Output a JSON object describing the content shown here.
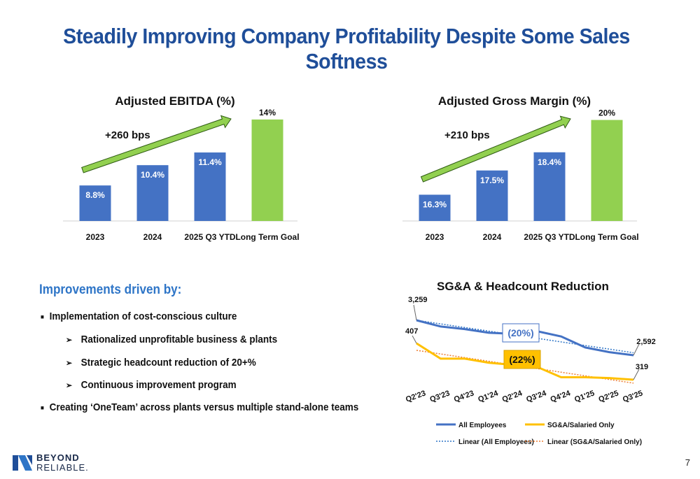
{
  "title": "Steadily Improving Company Profitability Despite Some Sales Softness",
  "colors": {
    "bar_blue": "#4472c4",
    "goal_green": "#92d050",
    "title_blue": "#1f4e99",
    "line_orange": "#ffc000",
    "headline_blue": "#2e75c7"
  },
  "chart_data": [
    {
      "type": "bar",
      "title": "Adjusted EBITDA (%)",
      "categories": [
        "2023",
        "2024",
        "2025 Q3 YTD",
        "Long Term Goal"
      ],
      "values": [
        8.8,
        10.4,
        11.4,
        14
      ],
      "labels": [
        "8.8%",
        "10.4%",
        "11.4%",
        "14%"
      ],
      "annotation": "+260 bps",
      "ylim": [
        6,
        14.6
      ]
    },
    {
      "type": "bar",
      "title": "Adjusted Gross Margin (%)",
      "categories": [
        "2023",
        "2024",
        "2025 Q3 YTD",
        "Long Term Goal"
      ],
      "values": [
        16.3,
        17.5,
        18.4,
        20
      ],
      "labels": [
        "16.3%",
        "17.5%",
        "18.4%",
        "20%"
      ],
      "annotation": "+210 bps",
      "ylim": [
        15,
        20.4
      ]
    },
    {
      "type": "line",
      "title": "SG&A & Headcount Reduction",
      "categories": [
        "Q2'23",
        "Q3'23",
        "Q4'23",
        "Q1'24",
        "Q2'24",
        "Q3'24",
        "Q4'24",
        "Q1'25",
        "Q2'25",
        "Q3'25"
      ],
      "series": [
        {
          "name": "All Employees",
          "values": [
            3259,
            3140,
            3090,
            3020,
            3000,
            3050,
            2950,
            2740,
            2650,
            2592
          ]
        },
        {
          "name": "SG&A/Salaried Only",
          "values": [
            407,
            370,
            370,
            360,
            355,
            350,
            325,
            325,
            323,
            319
          ]
        }
      ],
      "trendlines": [
        "Linear (All Employees)",
        "Linear (SG&A/Salaried Only)"
      ],
      "point_labels": {
        "first_all": "3,259",
        "last_all": "2,592",
        "first_sga": "407",
        "last_sga": "319"
      },
      "callouts": [
        "(20%)",
        "(22%)"
      ]
    }
  ],
  "improvements": {
    "heading": "Improvements driven by:",
    "items": [
      {
        "level": 1,
        "text": "Implementation of cost-conscious culture"
      },
      {
        "level": 2,
        "text": "Rationalized unprofitable business & plants"
      },
      {
        "level": 2,
        "text": "Strategic headcount reduction of 20+%"
      },
      {
        "level": 2,
        "text": "Continuous improvement program"
      },
      {
        "level": 1,
        "text": "Creating ‘OneTeam’ across plants versus multiple stand-alone teams"
      }
    ]
  },
  "footer": {
    "logo_line1": "BEYOND",
    "logo_line2": "RELIABLE.",
    "page_number": "7"
  }
}
